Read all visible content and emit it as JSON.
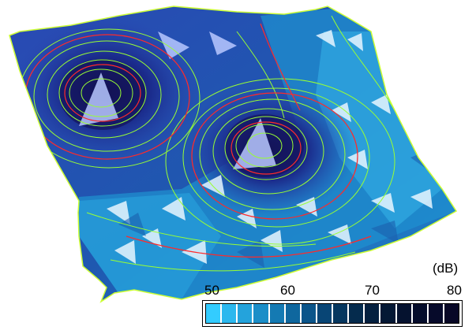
{
  "chart_data": {
    "type": "surface-contour",
    "title": "",
    "unit": "(dB)",
    "colorbar": {
      "min": 50,
      "max": 80,
      "ticks": [
        "50",
        "60",
        "70",
        "80"
      ],
      "swatches": [
        "#33ccff",
        "#2cb8ee",
        "#24a3dc",
        "#1b8ec8",
        "#147ab3",
        "#0f679e",
        "#0b558a",
        "#084575",
        "#06375f",
        "#052b4d",
        "#04203f",
        "#041834",
        "#05122f",
        "#050d2b",
        "#060a2a",
        "#080826"
      ]
    },
    "peaks": [
      {
        "label": "peak-left",
        "level": 78
      },
      {
        "label": "peak-center",
        "level": 76
      }
    ],
    "contour_colors": {
      "minor": "#99ff33",
      "major": "#ff2222"
    }
  }
}
